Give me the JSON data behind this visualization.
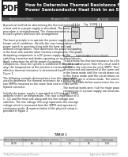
{
  "title_line1": "How to Determine Thermal Resistance for a",
  "title_line2": "Power Semiconductor Heat Sink in an SMPS",
  "subtitle_left": "Application Note",
  "subtitle_mid": "August 2002",
  "subtitle_right": "AN-1030",
  "bg_color": "#ffffff",
  "header_bg": "#1c1c1c",
  "header_text_color": "#ffffff",
  "pdf_label": "PDF",
  "body_text_color": "#1a1a1a",
  "footer_text_color": "#888888",
  "col1_lines": [
    "A practical method for determining the thermal resistance of",
    "a heat sink in a power supply is described. The basic",
    "procedure is straightforward. The characterization is unique",
    "to each system and heat sink arrangement.",
    "",
    "The basic principle is to operate the power supply under a",
    "known set of conditions. Identify the case temperatures of the",
    "power switch in question along with the heat sink and",
    "ambient temperatures. Then determine the power dissipating",
    "in the heat sink and the other thermal components. The power",
    "dissipating components in a DC power supply are the",
    "switching transistor and diodes operating as rectifiers/drivers.",
    "Apply corrections for all the power dissipating",
    "components. Once the system is stabilized in the same cool",
    "way, the temperature at the junction is measured. The",
    "effective thermal resistance is determined from",
    "Figure 1."
  ],
  "col1_lines2": [
    "The following example demonstrates how this approach is",
    "used to determine the thermal resistance for a heat sink with",
    "two SMPSs mounted on the same heat sink in a two switch",
    "flyback converter.",
    "",
    "Initially the power supply is operated at full load with SMPS",
    "ambient (room) air temperature. The case temperature of Q",
    "1 - Q2 and the heat sink along with the line voltage and",
    "switches. The line voltage (Vin avg) represents the average",
    "voltage which is measured from the SMPS and operates in",
    "continuous mode. A representation of the physical setup is",
    "provided in Figure 2."
  ],
  "col2_lines": [
    "To determine the thermal resistance for a heat sink, Figure",
    "Fig.(1) is constructed. From this circuit and the data it",
    "should be the selection for each SMPS. The list is",
    "disconnected and operated at the same voltage as provided",
    "in the linear mode until the circuit draws case and heat only.",
    "In this linear mode until the circuit draws case and heat only,",
    "Then SMPS are in a linear mode. The intermediate illustration is",
    "Fig.(1). The table below summarizes the results.",
    "",
    "The method works best if all the major power dissipating",
    "components in a power supply are measured at the same",
    "time."
  ],
  "table_title": "TABLE 1",
  "table_headers": [
    "SOURCE RESISTANCE (W)",
    "TEMPERATURE (C)",
    "HEAT SINK (C)",
    "TJ-A (C)",
    "TJ-HS (C)",
    "Rjca (C/W)"
  ],
  "table_row": [
    "25.00",
    "26",
    "41",
    "70",
    "29",
    "1.16"
  ],
  "fig_label": "Fig. 1000",
  "fig_sub1": "COMPONENT",
  "fig_sub2": "SWITCHING MOSFET",
  "footer_left": "Vishay Siliconix (formerly Siliconix)",
  "footer_right": "Application Note A13-001-1"
}
